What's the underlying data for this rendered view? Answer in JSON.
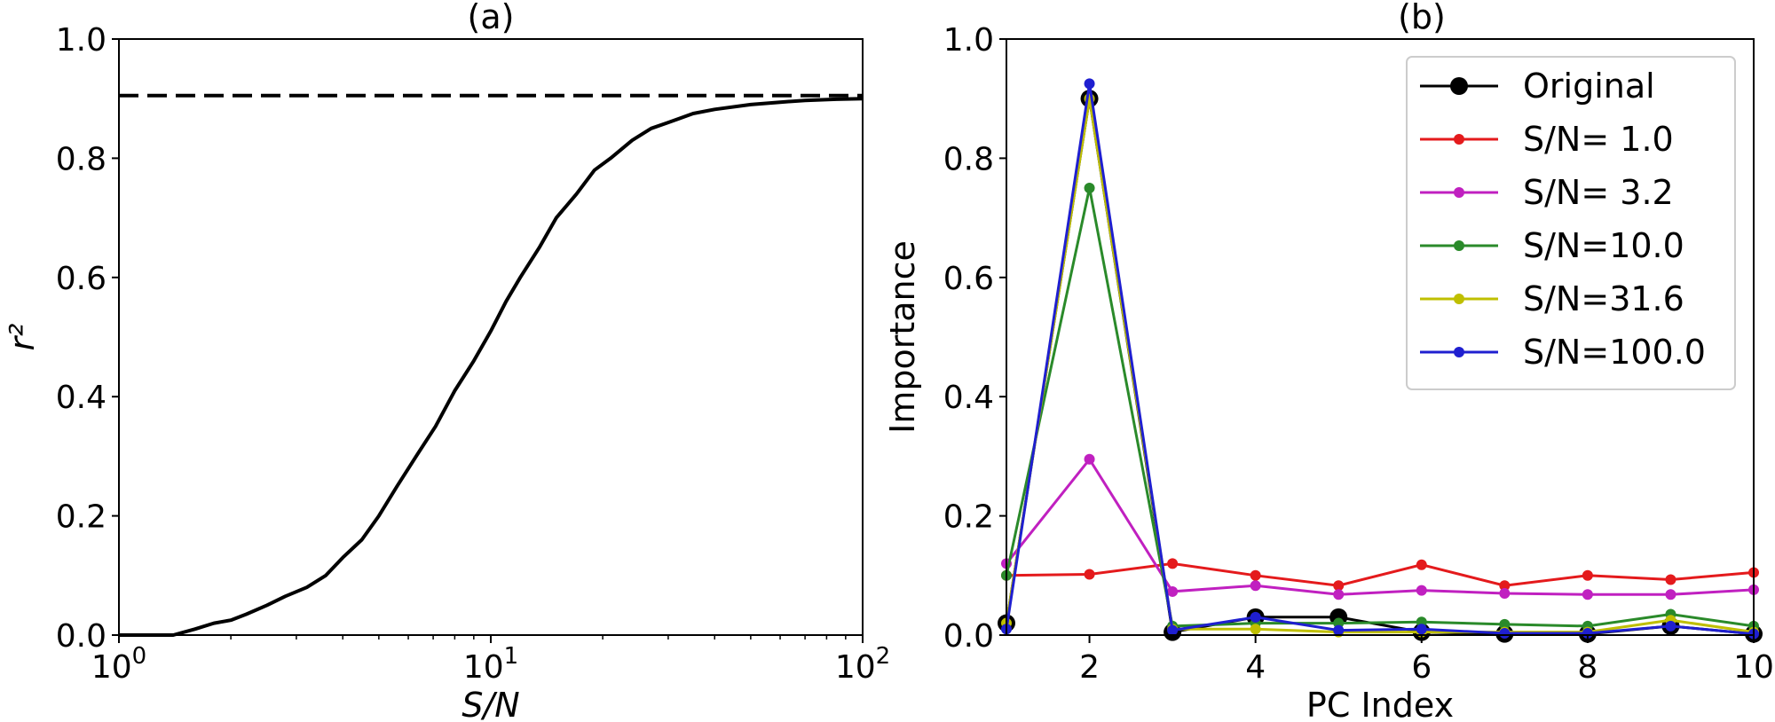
{
  "chart_data": [
    {
      "type": "line",
      "title": "(a)",
      "xlabel": "S/N",
      "ylabel": "r²",
      "xscale": "log",
      "xlim": [
        1,
        100
      ],
      "ylim": [
        0,
        1.0
      ],
      "xticks": [
        {
          "value": 1,
          "base": "10",
          "exp": "0"
        },
        {
          "value": 10,
          "base": "10",
          "exp": "1"
        },
        {
          "value": 100,
          "base": "10",
          "exp": "2"
        }
      ],
      "yticks": [
        "0.0",
        "0.2",
        "0.4",
        "0.6",
        "0.8",
        "1.0"
      ],
      "grid": false,
      "series": [
        {
          "style": "solid",
          "color": "#000000",
          "x": [
            1.0,
            1.2,
            1.4,
            1.6,
            1.8,
            2.0,
            2.2,
            2.5,
            2.8,
            3.2,
            3.6,
            4.0,
            4.5,
            5.0,
            5.6,
            6.3,
            7.1,
            8.0,
            9.0,
            10.0,
            11.0,
            12.0,
            13.5,
            15.0,
            17.0,
            19.0,
            21.0,
            24.0,
            27.0,
            30.0,
            35.0,
            40.0,
            50.0,
            60.0,
            70.0,
            85.0,
            100.0
          ],
          "values": [
            0.0,
            0.0,
            0.0,
            0.01,
            0.02,
            0.025,
            0.035,
            0.05,
            0.065,
            0.08,
            0.1,
            0.13,
            0.16,
            0.2,
            0.25,
            0.3,
            0.35,
            0.41,
            0.46,
            0.51,
            0.56,
            0.6,
            0.65,
            0.7,
            0.74,
            0.78,
            0.8,
            0.83,
            0.85,
            0.86,
            0.875,
            0.882,
            0.89,
            0.894,
            0.897,
            0.899,
            0.9
          ]
        },
        {
          "style": "dashed",
          "color": "#000000",
          "x": [
            1,
            100
          ],
          "values": [
            0.905,
            0.905
          ]
        }
      ]
    },
    {
      "type": "line",
      "title": "(b)",
      "xlabel": "PC Index",
      "ylabel": "Importance",
      "xlim": [
        1,
        10
      ],
      "ylim": [
        0,
        1.0
      ],
      "xticks": [
        "2",
        "4",
        "6",
        "8",
        "10"
      ],
      "yticks": [
        "0.0",
        "0.2",
        "0.4",
        "0.6",
        "0.8",
        "1.0"
      ],
      "grid": false,
      "legend_position": "top-right",
      "x": [
        1,
        2,
        3,
        4,
        5,
        6,
        7,
        8,
        9,
        10
      ],
      "series": [
        {
          "name": "Original",
          "color": "#000000",
          "marker": "large",
          "values": [
            0.02,
            0.9,
            0.005,
            0.03,
            0.03,
            0.005,
            0.002,
            0.002,
            0.015,
            0.002
          ]
        },
        {
          "name": "S/N= 1.0",
          "color": "#e41a1c",
          "marker": "small",
          "values": [
            0.1,
            0.102,
            0.12,
            0.1,
            0.083,
            0.118,
            0.083,
            0.1,
            0.093,
            0.105
          ]
        },
        {
          "name": "S/N= 3.2",
          "color": "#c020c0",
          "marker": "small",
          "values": [
            0.12,
            0.295,
            0.073,
            0.083,
            0.068,
            0.075,
            0.07,
            0.068,
            0.068,
            0.076
          ]
        },
        {
          "name": "S/N=10.0",
          "color": "#2a8a2a",
          "marker": "small",
          "values": [
            0.1,
            0.75,
            0.015,
            0.02,
            0.02,
            0.022,
            0.018,
            0.015,
            0.035,
            0.015
          ]
        },
        {
          "name": "S/N=31.6",
          "color": "#bfbf00",
          "marker": "small",
          "values": [
            0.02,
            0.9,
            0.01,
            0.01,
            0.005,
            0.005,
            0.005,
            0.005,
            0.025,
            0.005
          ]
        },
        {
          "name": "S/N=100.0",
          "color": "#1f1fd0",
          "marker": "small",
          "values": [
            0.01,
            0.925,
            0.008,
            0.03,
            0.008,
            0.01,
            0.003,
            0.003,
            0.015,
            0.002
          ]
        }
      ]
    }
  ]
}
